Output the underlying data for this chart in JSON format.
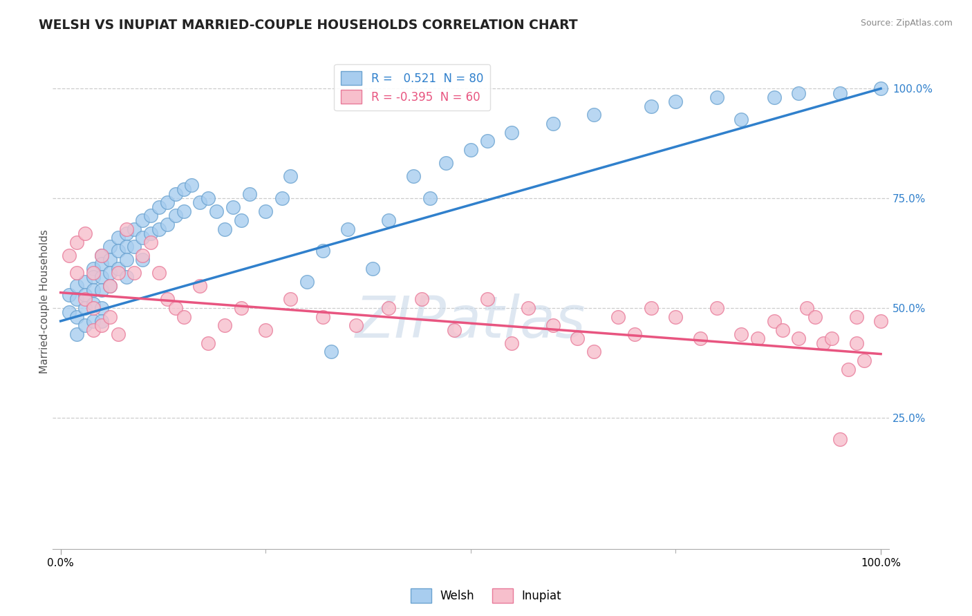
{
  "title": "WELSH VS INUPIAT MARRIED-COUPLE HOUSEHOLDS CORRELATION CHART",
  "source": "Source: ZipAtlas.com",
  "ylabel": "Married-couple Households",
  "ytick_labels": [
    "25.0%",
    "50.0%",
    "75.0%",
    "100.0%"
  ],
  "ytick_vals": [
    0.25,
    0.5,
    0.75,
    1.0
  ],
  "xtick_labels": [
    "0.0%",
    "100.0%"
  ],
  "xtick_vals": [
    0.0,
    1.0
  ],
  "legend_welsh_r": "R =   0.521",
  "legend_welsh_n": "N = 80",
  "legend_inupiat_r": "R = -0.395",
  "legend_inupiat_n": "N = 60",
  "welsh_color": "#A8CDEF",
  "welsh_edge": "#6BA3D0",
  "inupiat_color": "#F7BFCC",
  "inupiat_edge": "#E87A99",
  "blue_line_color": "#3080CC",
  "pink_line_color": "#E85580",
  "watermark": "ZIPatlas",
  "background_color": "#FFFFFF",
  "grid_color": "#CCCCCC",
  "blue_line_x0": 0.0,
  "blue_line_y0": 0.47,
  "blue_line_x1": 1.0,
  "blue_line_y1": 1.0,
  "pink_line_x0": 0.0,
  "pink_line_y0": 0.535,
  "pink_line_x1": 1.0,
  "pink_line_y1": 0.395,
  "welsh_x": [
    0.01,
    0.01,
    0.02,
    0.02,
    0.02,
    0.02,
    0.03,
    0.03,
    0.03,
    0.03,
    0.04,
    0.04,
    0.04,
    0.04,
    0.04,
    0.05,
    0.05,
    0.05,
    0.05,
    0.05,
    0.05,
    0.06,
    0.06,
    0.06,
    0.06,
    0.07,
    0.07,
    0.07,
    0.08,
    0.08,
    0.08,
    0.08,
    0.09,
    0.09,
    0.1,
    0.1,
    0.1,
    0.11,
    0.11,
    0.12,
    0.12,
    0.13,
    0.13,
    0.14,
    0.14,
    0.15,
    0.15,
    0.16,
    0.17,
    0.18,
    0.19,
    0.2,
    0.21,
    0.22,
    0.23,
    0.25,
    0.27,
    0.28,
    0.3,
    0.32,
    0.33,
    0.35,
    0.38,
    0.4,
    0.43,
    0.45,
    0.47,
    0.5,
    0.52,
    0.55,
    0.6,
    0.65,
    0.72,
    0.75,
    0.8,
    0.83,
    0.87,
    0.9,
    0.95,
    1.0
  ],
  "welsh_y": [
    0.53,
    0.49,
    0.55,
    0.52,
    0.48,
    0.44,
    0.56,
    0.53,
    0.5,
    0.46,
    0.59,
    0.57,
    0.54,
    0.51,
    0.47,
    0.62,
    0.6,
    0.57,
    0.54,
    0.5,
    0.47,
    0.64,
    0.61,
    0.58,
    0.55,
    0.66,
    0.63,
    0.59,
    0.67,
    0.64,
    0.61,
    0.57,
    0.68,
    0.64,
    0.7,
    0.66,
    0.61,
    0.71,
    0.67,
    0.73,
    0.68,
    0.74,
    0.69,
    0.76,
    0.71,
    0.77,
    0.72,
    0.78,
    0.74,
    0.75,
    0.72,
    0.68,
    0.73,
    0.7,
    0.76,
    0.72,
    0.75,
    0.8,
    0.56,
    0.63,
    0.4,
    0.68,
    0.59,
    0.7,
    0.8,
    0.75,
    0.83,
    0.86,
    0.88,
    0.9,
    0.92,
    0.94,
    0.96,
    0.97,
    0.98,
    0.93,
    0.98,
    0.99,
    0.99,
    1.0
  ],
  "inupiat_x": [
    0.01,
    0.02,
    0.02,
    0.03,
    0.03,
    0.04,
    0.04,
    0.04,
    0.05,
    0.05,
    0.06,
    0.06,
    0.07,
    0.07,
    0.08,
    0.09,
    0.1,
    0.11,
    0.12,
    0.13,
    0.14,
    0.15,
    0.17,
    0.18,
    0.2,
    0.22,
    0.25,
    0.28,
    0.32,
    0.36,
    0.4,
    0.44,
    0.48,
    0.52,
    0.55,
    0.57,
    0.6,
    0.63,
    0.65,
    0.68,
    0.7,
    0.72,
    0.75,
    0.78,
    0.8,
    0.83,
    0.85,
    0.87,
    0.88,
    0.9,
    0.91,
    0.92,
    0.93,
    0.94,
    0.95,
    0.96,
    0.97,
    0.97,
    0.98,
    1.0
  ],
  "inupiat_y": [
    0.62,
    0.65,
    0.58,
    0.67,
    0.52,
    0.58,
    0.5,
    0.45,
    0.62,
    0.46,
    0.55,
    0.48,
    0.58,
    0.44,
    0.68,
    0.58,
    0.62,
    0.65,
    0.58,
    0.52,
    0.5,
    0.48,
    0.55,
    0.42,
    0.46,
    0.5,
    0.45,
    0.52,
    0.48,
    0.46,
    0.5,
    0.52,
    0.45,
    0.52,
    0.42,
    0.5,
    0.46,
    0.43,
    0.4,
    0.48,
    0.44,
    0.5,
    0.48,
    0.43,
    0.5,
    0.44,
    0.43,
    0.47,
    0.45,
    0.43,
    0.5,
    0.48,
    0.42,
    0.43,
    0.2,
    0.36,
    0.42,
    0.48,
    0.38,
    0.47
  ]
}
